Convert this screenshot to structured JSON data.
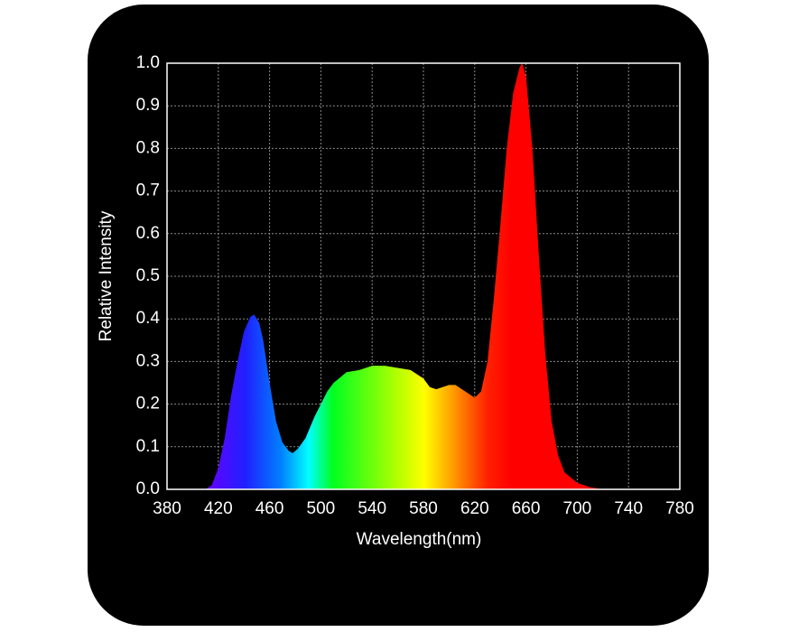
{
  "chart_data": {
    "type": "area",
    "x_label": "Wavelength(nm)",
    "y_label": "Relative Intensity",
    "x": [
      410,
      415,
      420,
      425,
      430,
      435,
      440,
      445,
      448,
      452,
      455,
      460,
      465,
      470,
      475,
      478,
      482,
      488,
      495,
      500,
      505,
      510,
      520,
      530,
      540,
      550,
      560,
      570,
      580,
      585,
      590,
      595,
      600,
      605,
      610,
      615,
      620,
      625,
      630,
      635,
      640,
      645,
      650,
      655,
      657,
      660,
      665,
      670,
      675,
      680,
      685,
      690,
      700,
      710,
      720
    ],
    "values": [
      0,
      0.01,
      0.05,
      0.12,
      0.22,
      0.3,
      0.37,
      0.405,
      0.41,
      0.39,
      0.35,
      0.25,
      0.16,
      0.11,
      0.09,
      0.085,
      0.095,
      0.12,
      0.17,
      0.2,
      0.23,
      0.25,
      0.275,
      0.28,
      0.29,
      0.29,
      0.285,
      0.28,
      0.26,
      0.24,
      0.235,
      0.24,
      0.245,
      0.245,
      0.235,
      0.225,
      0.215,
      0.23,
      0.3,
      0.45,
      0.62,
      0.8,
      0.93,
      0.99,
      1.0,
      0.97,
      0.8,
      0.55,
      0.32,
      0.16,
      0.08,
      0.04,
      0.015,
      0.005,
      0
    ],
    "xlim": [
      380,
      780
    ],
    "xticks": [
      380,
      420,
      460,
      500,
      540,
      580,
      620,
      660,
      700,
      740,
      780
    ],
    "ylim": [
      0,
      1
    ],
    "yticks": [
      {
        "value": 0,
        "label": "0.0"
      },
      0.1,
      0.2,
      0.3,
      0.4,
      0.5,
      0.6,
      0.7,
      0.8,
      0.9,
      {
        "value": 1,
        "label": "1.0"
      }
    ],
    "grid": true
  }
}
